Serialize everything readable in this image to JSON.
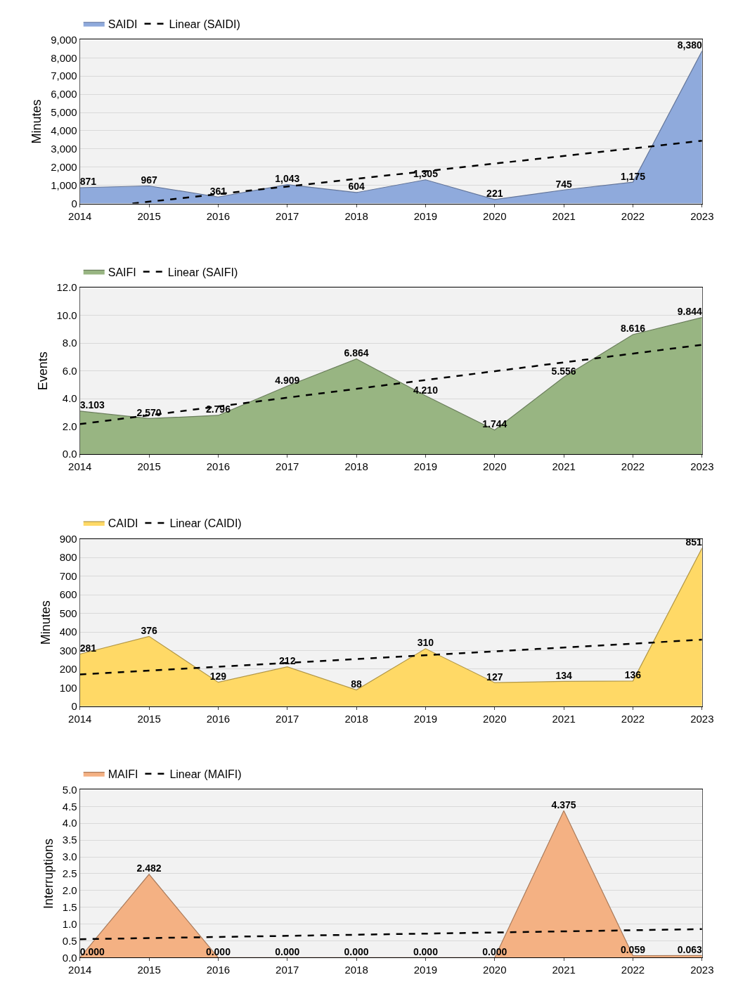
{
  "chart_data": [
    {
      "type": "area",
      "ylabel": "Minutes",
      "x": [
        2014,
        2015,
        2016,
        2017,
        2018,
        2019,
        2020,
        2021,
        2022,
        2023
      ],
      "xlim": [
        2014,
        2023
      ],
      "xticks": [
        2014,
        2015,
        2016,
        2017,
        2018,
        2019,
        2020,
        2021,
        2022,
        2023
      ],
      "ylim": [
        0,
        9000
      ],
      "yticks": [
        0,
        {
          "value": 1000,
          "label": "1,000"
        },
        {
          "value": 2000,
          "label": "2,000"
        },
        {
          "value": 3000,
          "label": "3,000"
        },
        {
          "value": 4000,
          "label": "4,000"
        },
        {
          "value": 5000,
          "label": "5,000"
        },
        {
          "value": 6000,
          "label": "6,000"
        },
        {
          "value": 7000,
          "label": "7,000"
        },
        {
          "value": 8000,
          "label": "8,000"
        },
        {
          "value": 9000,
          "label": "9,000"
        }
      ],
      "grid": "y",
      "legend": "top left",
      "marker": "none",
      "series": [
        {
          "name": "SAIDI",
          "color": "#8faadc",
          "values": [
            871,
            967,
            361,
            1043,
            604,
            1305,
            221,
            745,
            1175,
            8380
          ],
          "value_labels": [
            "871",
            "967",
            "361",
            "1,043",
            "604",
            "1,305",
            "221",
            "745",
            "1,175",
            "8,380"
          ]
        },
        {
          "name": "Linear (SAIDI)",
          "type": "line",
          "line_style": "dashed",
          "color": "#000000",
          "x": [
            2014.76,
            2023
          ],
          "values": [
            0,
            3450
          ]
        }
      ]
    },
    {
      "type": "area",
      "ylabel": "Events",
      "x": [
        2014,
        2015,
        2016,
        2017,
        2018,
        2019,
        2020,
        2021,
        2022,
        2023
      ],
      "xlim": [
        2014,
        2023
      ],
      "xticks": [
        2014,
        2015,
        2016,
        2017,
        2018,
        2019,
        2020,
        2021,
        2022,
        2023
      ],
      "ylim": [
        0,
        12
      ],
      "yticks": [
        {
          "value": 0,
          "label": "0.0"
        },
        {
          "value": 2,
          "label": "2.0"
        },
        {
          "value": 4,
          "label": "4.0"
        },
        {
          "value": 6,
          "label": "6.0"
        },
        {
          "value": 8,
          "label": "8.0"
        },
        {
          "value": 10,
          "label": "10.0"
        },
        {
          "value": 12,
          "label": "12.0"
        }
      ],
      "grid": "y",
      "legend": "top left",
      "marker": "none",
      "series": [
        {
          "name": "SAIFI",
          "color": "#98b582",
          "values": [
            3.103,
            2.57,
            2.796,
            4.909,
            6.864,
            4.21,
            1.744,
            5.556,
            8.616,
            9.844
          ],
          "value_labels": [
            "3.103",
            "2.570",
            "2.796",
            "4.909",
            "6.864",
            "4.210",
            "1.744",
            "5.556",
            "8.616",
            "9.844"
          ]
        },
        {
          "name": "Linear (SAIFI)",
          "type": "line",
          "line_style": "dashed",
          "color": "#000000",
          "x": [
            2014,
            2023
          ],
          "values": [
            2.17,
            7.88
          ]
        }
      ]
    },
    {
      "type": "area",
      "ylabel": "Minutes",
      "x": [
        2014,
        2015,
        2016,
        2017,
        2018,
        2019,
        2020,
        2021,
        2022,
        2023
      ],
      "xlim": [
        2014,
        2023
      ],
      "xticks": [
        2014,
        2015,
        2016,
        2017,
        2018,
        2019,
        2020,
        2021,
        2022,
        2023
      ],
      "ylim": [
        0,
        900
      ],
      "yticks": [
        0,
        100,
        200,
        300,
        400,
        500,
        600,
        700,
        800,
        900
      ],
      "grid": "y",
      "legend": "top left",
      "marker": "none",
      "series": [
        {
          "name": "CAIDI",
          "color": "#ffd966",
          "values": [
            281,
            376,
            129,
            212,
            88,
            310,
            127,
            134,
            136,
            851
          ],
          "value_labels": [
            "281",
            "376",
            "129",
            "212",
            "88",
            "310",
            "127",
            "134",
            "136",
            "851"
          ]
        },
        {
          "name": "Linear (CAIDI)",
          "type": "line",
          "line_style": "dashed",
          "color": "#000000",
          "x": [
            2014,
            2023
          ],
          "values": [
            171,
            358
          ]
        }
      ]
    },
    {
      "type": "area",
      "ylabel": "Interruptions",
      "x": [
        2014,
        2015,
        2016,
        2017,
        2018,
        2019,
        2020,
        2021,
        2022,
        2023
      ],
      "xlim": [
        2014,
        2023
      ],
      "xticks": [
        2014,
        2015,
        2016,
        2017,
        2018,
        2019,
        2020,
        2021,
        2022,
        2023
      ],
      "ylim": [
        0,
        5
      ],
      "yticks": [
        {
          "value": 0,
          "label": "0.0"
        },
        {
          "value": 0.5,
          "label": "0.5"
        },
        {
          "value": 1,
          "label": "1.0"
        },
        {
          "value": 1.5,
          "label": "1.5"
        },
        {
          "value": 2,
          "label": "2.0"
        },
        {
          "value": 2.5,
          "label": "2.5"
        },
        {
          "value": 3,
          "label": "3.0"
        },
        {
          "value": 3.5,
          "label": "3.5"
        },
        {
          "value": 4,
          "label": "4.0"
        },
        {
          "value": 4.5,
          "label": "4.5"
        },
        {
          "value": 5,
          "label": "5.0"
        }
      ],
      "grid": "y",
      "legend": "top left",
      "marker": "none",
      "series": [
        {
          "name": "MAIFI",
          "color": "#f4b183",
          "values": [
            0,
            2.482,
            0,
            0,
            0,
            0,
            0,
            4.375,
            0.059,
            0.063
          ],
          "value_labels": [
            "0.000",
            "2.482",
            "0.000",
            "0.000",
            "0.000",
            "0.000",
            "0.000",
            "4.375",
            "0.059",
            "0.063"
          ]
        },
        {
          "name": "Linear (MAIFI)",
          "type": "line",
          "line_style": "dashed",
          "color": "#000000",
          "x": [
            2014,
            2023
          ],
          "values": [
            0.55,
            0.85
          ]
        }
      ]
    }
  ]
}
